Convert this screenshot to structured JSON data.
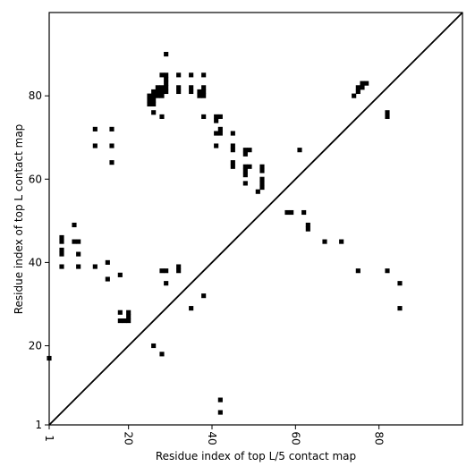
{
  "chart_data": {
    "type": "scatter",
    "marker": "square",
    "xlabel": "Residue index of top L/5 contact map",
    "ylabel": "Residue index of top L contact map",
    "xlim": [
      1,
      100
    ],
    "ylim": [
      1,
      100
    ],
    "x_ticks": [
      1,
      20,
      40,
      60,
      80
    ],
    "y_ticks": [
      1,
      20,
      40,
      60,
      80
    ],
    "grid": false,
    "colors": {
      "points": "#000000",
      "diagonal": "#000000",
      "background": "#ffffff"
    },
    "diagonal": {
      "from": [
        1,
        1
      ],
      "to": [
        100,
        100
      ]
    },
    "series": [
      {
        "values_description": "upper triangle: top L contacts",
        "points": [
          [
            1,
            17
          ],
          [
            4,
            39
          ],
          [
            4,
            42
          ],
          [
            4,
            43
          ],
          [
            4,
            45
          ],
          [
            4,
            46
          ],
          [
            7,
            45
          ],
          [
            7,
            49
          ],
          [
            8,
            39
          ],
          [
            8,
            42
          ],
          [
            8,
            45
          ],
          [
            12,
            39
          ],
          [
            12,
            68
          ],
          [
            12,
            72
          ],
          [
            15,
            36
          ],
          [
            15,
            40
          ],
          [
            16,
            64
          ],
          [
            16,
            68
          ],
          [
            16,
            72
          ],
          [
            18,
            28
          ],
          [
            18,
            37
          ],
          [
            18,
            26
          ],
          [
            19,
            26
          ],
          [
            20,
            26
          ],
          [
            20,
            27
          ],
          [
            20,
            28
          ],
          [
            26,
            20
          ],
          [
            28,
            18
          ],
          [
            28,
            38
          ],
          [
            29,
            38
          ],
          [
            29,
            35
          ],
          [
            32,
            38
          ],
          [
            32,
            39
          ],
          [
            35,
            29
          ],
          [
            38,
            32
          ],
          [
            25,
            78
          ],
          [
            25,
            79
          ],
          [
            25,
            80
          ],
          [
            26,
            78
          ],
          [
            26,
            79
          ],
          [
            26,
            80
          ],
          [
            26,
            81
          ],
          [
            26,
            76
          ],
          [
            27,
            80
          ],
          [
            27,
            81
          ],
          [
            27,
            82
          ],
          [
            28,
            80
          ],
          [
            28,
            81
          ],
          [
            28,
            82
          ],
          [
            28,
            85
          ],
          [
            28,
            75
          ],
          [
            29,
            81
          ],
          [
            29,
            82
          ],
          [
            29,
            83
          ],
          [
            29,
            84
          ],
          [
            29,
            85
          ],
          [
            29,
            90
          ],
          [
            32,
            81
          ],
          [
            32,
            82
          ],
          [
            32,
            85
          ],
          [
            35,
            81
          ],
          [
            35,
            82
          ],
          [
            35,
            85
          ],
          [
            37,
            80
          ],
          [
            37,
            81
          ],
          [
            38,
            80
          ],
          [
            38,
            81
          ],
          [
            38,
            82
          ],
          [
            38,
            85
          ],
          [
            38,
            75
          ],
          [
            41,
            68
          ],
          [
            41,
            71
          ],
          [
            41,
            74
          ],
          [
            41,
            75
          ],
          [
            42,
            71
          ],
          [
            42,
            72
          ],
          [
            42,
            75
          ],
          [
            45,
            63
          ],
          [
            45,
            64
          ],
          [
            45,
            67
          ],
          [
            45,
            68
          ],
          [
            45,
            71
          ],
          [
            48,
            59
          ],
          [
            48,
            61
          ],
          [
            48,
            62
          ],
          [
            48,
            63
          ],
          [
            48,
            66
          ],
          [
            48,
            67
          ],
          [
            49,
            63
          ],
          [
            49,
            67
          ],
          [
            51,
            57
          ],
          [
            52,
            58
          ],
          [
            52,
            59
          ],
          [
            52,
            60
          ],
          [
            52,
            62
          ],
          [
            52,
            63
          ],
          [
            58,
            52
          ],
          [
            59,
            52
          ],
          [
            61,
            67
          ],
          [
            62,
            52
          ],
          [
            63,
            48
          ],
          [
            63,
            49
          ],
          [
            67,
            45
          ],
          [
            71,
            45
          ],
          [
            74,
            80
          ],
          [
            75,
            81
          ],
          [
            75,
            82
          ],
          [
            76,
            82
          ],
          [
            76,
            83
          ],
          [
            77,
            83
          ],
          [
            75,
            38
          ],
          [
            82,
            38
          ],
          [
            82,
            75
          ],
          [
            82,
            76
          ],
          [
            85,
            29
          ],
          [
            85,
            35
          ]
        ]
      },
      {
        "values_description": "lower triangle: top L/5 contacts",
        "points": [
          [
            42,
            7
          ],
          [
            42,
            4
          ]
        ]
      }
    ]
  }
}
